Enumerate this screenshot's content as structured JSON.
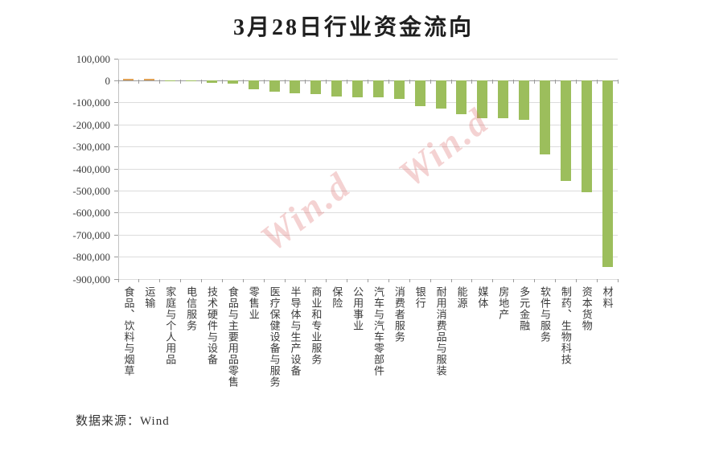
{
  "title": "3月28日行业资金流向",
  "source": {
    "text": "数据来源：Wind"
  },
  "watermark": {
    "text": "Win.d"
  },
  "colors": {
    "positive_bar": "#DFA257",
    "negative_bar": "#9CBE5C",
    "gridline": "#DCDCDC",
    "axis": "#9B9B9B",
    "label_text": "#3A3A3A"
  },
  "chart_data": {
    "type": "bar",
    "title": "3月28日行业资金流向",
    "xlabel": "",
    "ylabel": "",
    "grid": true,
    "legend": "none",
    "ylim": [
      -900000,
      100000
    ],
    "ytick_step": 100000,
    "yticklabels": [
      "100,000",
      "0",
      "-100,000",
      "-200,000",
      "-300,000",
      "-400,000",
      "-500,000",
      "-600,000",
      "-700,000",
      "-800,000",
      "-900,000"
    ],
    "categories": [
      "食品、饮料与烟草",
      "运输",
      "家庭与个人用品",
      "电信服务",
      "技术硬件与设备",
      "食品与主要用品零售",
      "零售业",
      "医疗保健设备与服务",
      "半导体与生产设备",
      "商业和专业服务",
      "保险",
      "公用事业",
      "汽车与汽车零部件",
      "消费者服务",
      "银行",
      "耐用消费品与服装",
      "能源",
      "媒体",
      "房地产",
      "多元金融",
      "软件与服务",
      "制药、生物科技",
      "资本货物",
      "材料"
    ],
    "values": [
      8000,
      7000,
      -1000,
      -3000,
      -10000,
      -13000,
      -38000,
      -48000,
      -57000,
      -61000,
      -71000,
      -76000,
      -77000,
      -81000,
      -116000,
      -127000,
      -151000,
      -169000,
      -170000,
      -179000,
      -333000,
      -453000,
      -506000,
      -846000
    ]
  }
}
